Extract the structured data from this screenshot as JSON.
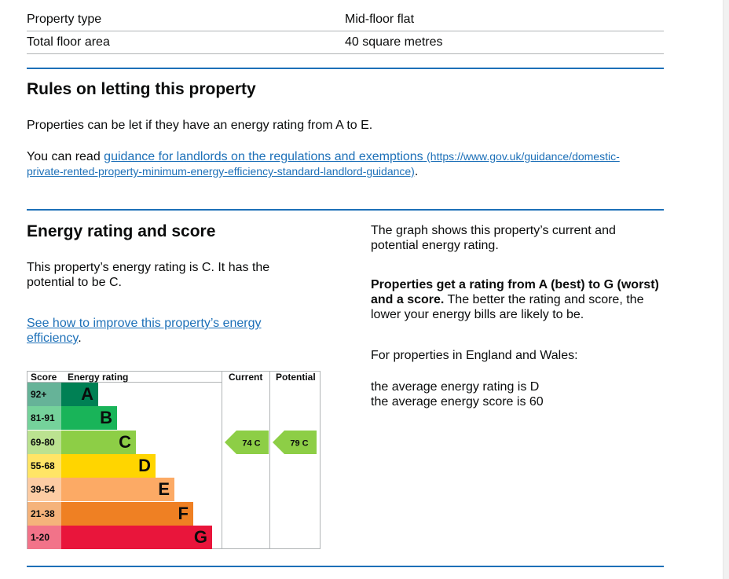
{
  "summary": {
    "rows": [
      {
        "key": "Property type",
        "value": "Mid-floor flat"
      },
      {
        "key": "Total floor area",
        "value": "40 square metres"
      }
    ]
  },
  "letting": {
    "heading": "Rules on letting this property",
    "para1": "Properties can be let if they have an energy rating from A to E.",
    "para2_prefix": "You can read",
    "link_text": "guidance for landlords on the regulations and exemptions",
    "link_url_line1": "(https://www.gov.uk/guidance/domestic-",
    "link_url_line2": "private-rented-property-minimum-energy-efficiency-standard-landlord-guidance)",
    "para2_suffix": "."
  },
  "rating": {
    "heading": "Energy rating and score",
    "para1_line1": "This property’s energy rating is C. It has the",
    "para1_line2": "potential to be C.",
    "improve_link_line1": "See how to improve this property’s energy",
    "improve_link_line2": "efficiency",
    "improve_suffix": ".",
    "right_para1_line1": "The graph shows this property’s current and",
    "right_para1_line2": "potential energy rating.",
    "right_para2_bold_line1": "Properties get a rating from A (best) to G (worst)",
    "right_para2_bold_line2": "and a score.",
    "right_para2_rest_line2": " The better the rating and score, the",
    "right_para2_line3": "lower your energy bills are likely to be.",
    "right_para3": "For properties in England and Wales:",
    "avg_rating": "the average energy rating is D",
    "avg_score": "the average energy score is 60"
  },
  "chart_data": {
    "type": "table",
    "headers": {
      "score": "Score",
      "rating": "Energy rating",
      "current": "Current",
      "potential": "Potential"
    },
    "bands": [
      {
        "range": "92+",
        "letter": "A",
        "color": "#008054",
        "score_bg": "#66b398"
      },
      {
        "range": "81-91",
        "letter": "B",
        "color": "#19b459",
        "score_bg": "#75d29b"
      },
      {
        "range": "69-80",
        "letter": "C",
        "color": "#8dce46",
        "score_bg": "#bbe290"
      },
      {
        "range": "55-68",
        "letter": "D",
        "color": "#ffd500",
        "score_bg": "#ffe566"
      },
      {
        "range": "39-54",
        "letter": "E",
        "color": "#fcaa65",
        "score_bg": "#fdcca3"
      },
      {
        "range": "21-38",
        "letter": "F",
        "color": "#ef8023",
        "score_bg": "#f5b37b"
      },
      {
        "range": "1-20",
        "letter": "G",
        "color": "#e9153b",
        "score_bg": "#f27389"
      }
    ],
    "current": {
      "score": 74,
      "letter": "C",
      "label": "74  C"
    },
    "potential": {
      "score": 79,
      "letter": "C",
      "label": "79  C"
    }
  }
}
